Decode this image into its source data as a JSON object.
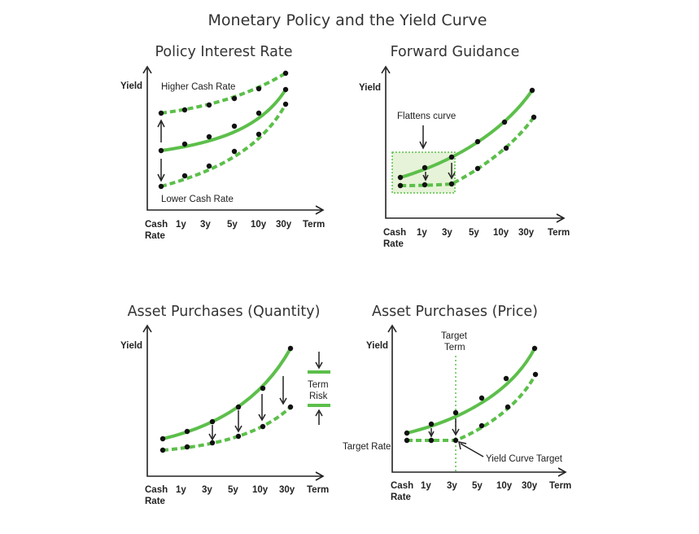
{
  "title": "Monetary Policy and the Yield Curve",
  "axis_common": {
    "y_label": "Yield",
    "x_ticks": [
      "Cash\nRate",
      "1y",
      "3y",
      "5y",
      "10y",
      "30y",
      "Term"
    ]
  },
  "panels": {
    "policy": {
      "title": "Policy Interest Rate",
      "higher_label": "Higher Cash Rate",
      "lower_label": "Lower Cash Rate"
    },
    "guidance": {
      "title": "Forward Guidance",
      "flattens_label": "Flattens curve"
    },
    "quantity": {
      "title": "Asset Purchases (Quantity)",
      "term_risk_label": "Term\nRisk"
    },
    "price": {
      "title": "Asset Purchases (Price)",
      "target_term_label": "Target\nTerm",
      "target_rate_label": "Target Rate",
      "yield_curve_target_label": "Yield Curve Target"
    }
  },
  "colors": {
    "curve": "#5cbf4a",
    "dots": "#111111",
    "axis": "#222222"
  }
}
